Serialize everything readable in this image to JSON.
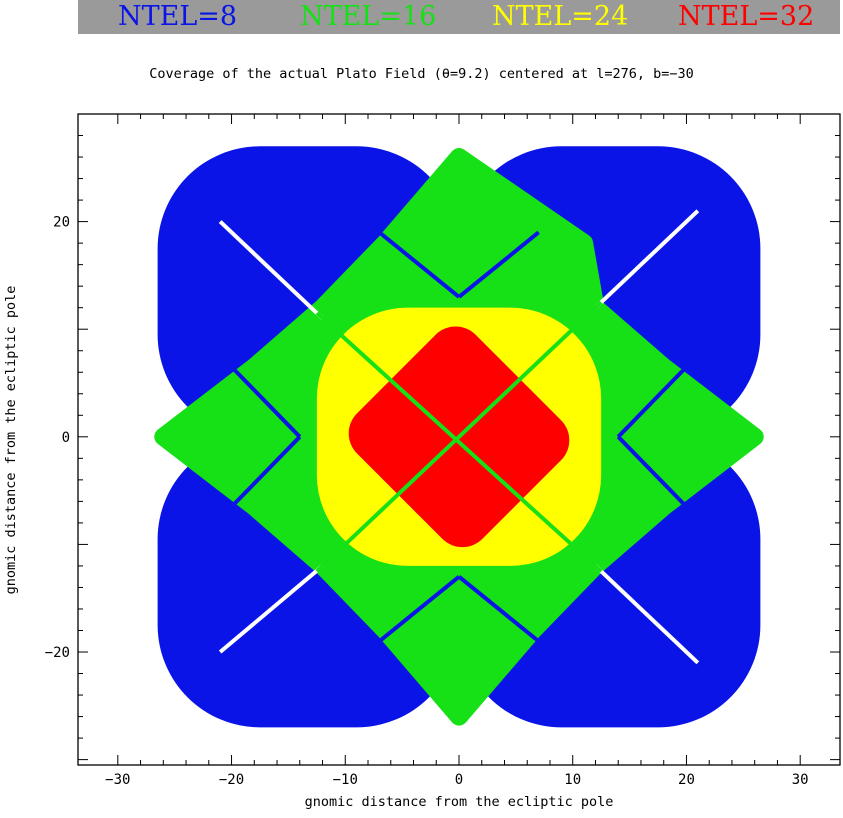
{
  "legend": [
    {
      "label": "NTEL=8",
      "color": "#0a14e6"
    },
    {
      "label": "NTEL=16",
      "color": "#16e016"
    },
    {
      "label": "NTEL=24",
      "color": "#ffff00"
    },
    {
      "label": "NTEL=32",
      "color": "#ff0000"
    }
  ],
  "chart_data": {
    "type": "scatter",
    "title": "Coverage of the actual Plato Field (θ=9.2) centered at l=276, b=−30",
    "xlabel": "gnomic distance from the ecliptic pole",
    "ylabel": "gnomic distance from the ecliptic pole",
    "xlim": [
      -33.5,
      33.5
    ],
    "ylim": [
      -30.5,
      30
    ],
    "xticks": [
      -30,
      -20,
      -10,
      0,
      10,
      20,
      30
    ],
    "yticks": [
      -20,
      0,
      20
    ],
    "xtick_labels": [
      "−30",
      "−20",
      "−10",
      "0",
      "10",
      "20",
      "30"
    ],
    "ytick_labels": [
      "−20",
      "0",
      "20"
    ],
    "grid": false,
    "field_radius_theta": 9.2,
    "center": {
      "l": 276,
      "b": -30
    },
    "camera_group_center_offset": [
      6.5,
      6.5
    ],
    "series": [
      {
        "name": "NTEL=8",
        "color": "#0a14e6"
      },
      {
        "name": "NTEL=16",
        "color": "#16e016"
      },
      {
        "name": "NTEL=24",
        "color": "#ffff00"
      },
      {
        "name": "NTEL=32",
        "color": "#ff0000"
      }
    ]
  }
}
